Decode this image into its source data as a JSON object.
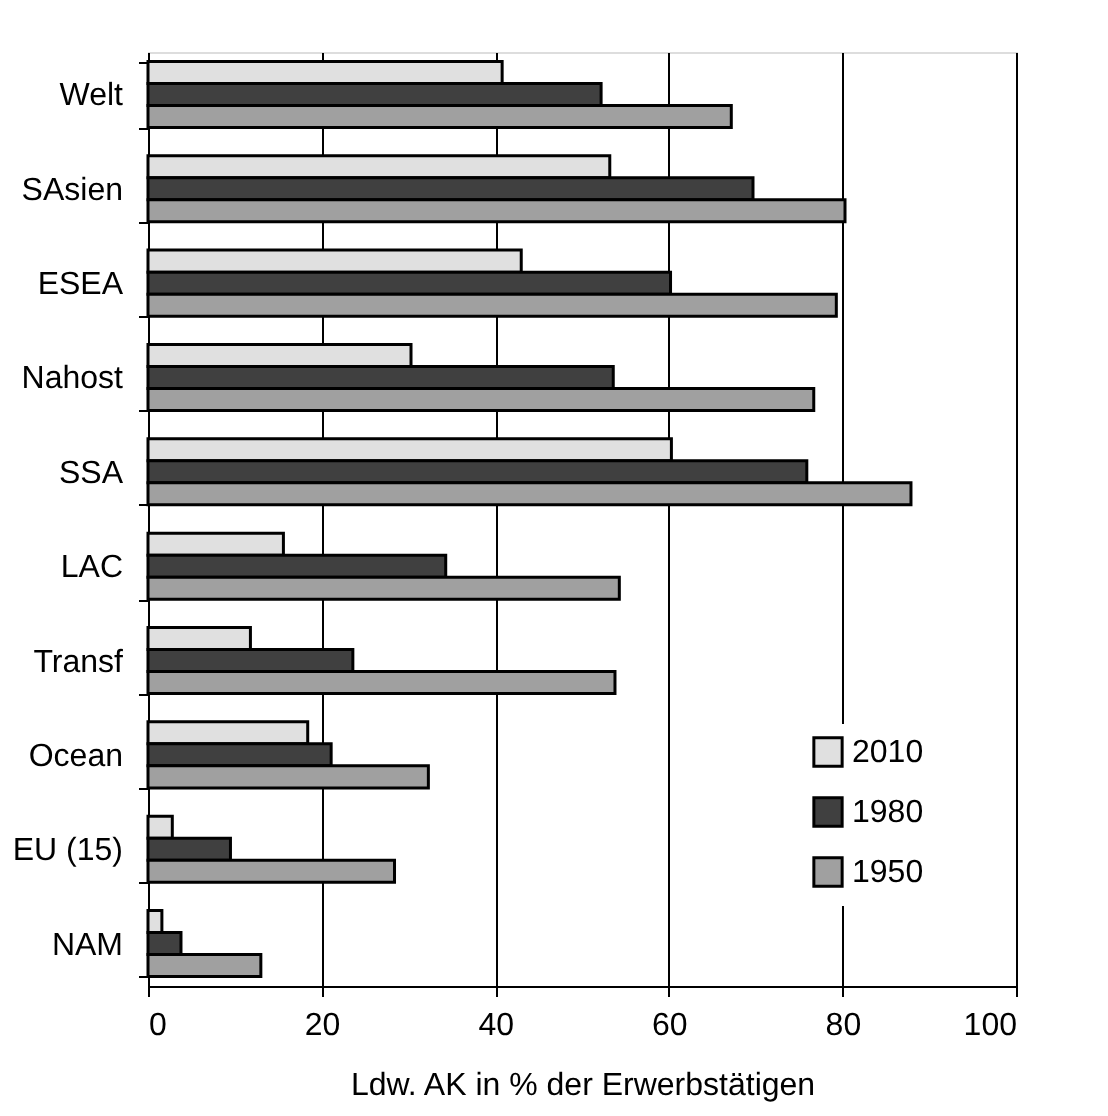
{
  "chart_data": {
    "type": "bar",
    "orientation": "horizontal",
    "xlabel": "Ldw. AK in % der Erwerbstätigen",
    "categories": [
      "Welt",
      "SAsien",
      "ESEA",
      "Nahost",
      "SSA",
      "LAC",
      "Transf",
      "Ocean",
      "EU (15)",
      "NAM"
    ],
    "series": [
      {
        "name": "2010",
        "color": "#e0e0e0",
        "values": [
          40.8,
          53.2,
          43.0,
          30.3,
          60.3,
          15.6,
          11.8,
          18.4,
          2.8,
          1.6
        ]
      },
      {
        "name": "1980",
        "color": "#404040",
        "values": [
          52.2,
          69.7,
          60.2,
          53.6,
          75.9,
          34.3,
          23.6,
          21.1,
          9.5,
          3.8
        ]
      },
      {
        "name": "1950",
        "color": "#a0a0a0",
        "values": [
          67.2,
          80.3,
          79.3,
          76.7,
          87.9,
          54.3,
          53.8,
          32.3,
          28.4,
          13.0
        ]
      }
    ],
    "xlim": [
      0,
      100
    ],
    "xticks": [
      0,
      20,
      40,
      60,
      80,
      100
    ],
    "grid": "x",
    "legend": "bottom right"
  }
}
